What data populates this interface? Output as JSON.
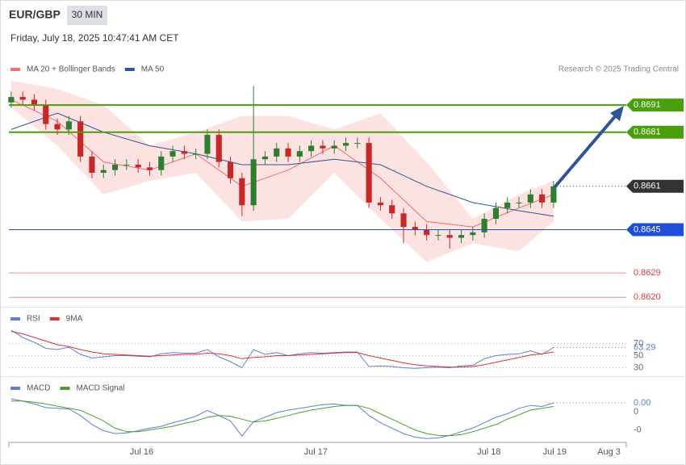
{
  "header": {
    "symbol": "EUR/GBP",
    "timeframe": "30 MIN",
    "datetime": "Friday, July 18, 2025 10:47:41 AM CET",
    "credit": "Research © 2025 Trading Central"
  },
  "chart_data": [
    {
      "type": "candlestick",
      "xlim": [
        -0.2,
        53.3
      ],
      "ylim": [
        0.8618,
        0.87
      ],
      "up_color": "#2e7d32",
      "down_color": "#c62828",
      "open": [
        0.8692,
        0.8694,
        0.8693,
        0.8691,
        0.8684,
        0.8682,
        0.8685,
        0.8672,
        0.8666,
        0.8667,
        0.8669,
        0.8669,
        0.8668,
        0.8667,
        0.8672,
        0.8674,
        0.8673,
        0.8673,
        0.868,
        0.867,
        0.8664,
        0.8654,
        0.8671,
        0.8672,
        0.8675,
        0.8672,
        0.8674,
        0.8676,
        0.8675,
        0.8676,
        0.8677,
        0.8677,
        0.8655,
        0.8654,
        0.8651,
        0.8646,
        0.8645,
        0.8643,
        0.8643,
        0.8642,
        0.8643,
        0.8644,
        0.8649,
        0.8653,
        0.8655,
        0.8655,
        0.8658,
        0.8655
      ],
      "high": [
        0.8696,
        0.8696,
        0.8695,
        0.8693,
        0.8686,
        0.8687,
        0.8687,
        0.8674,
        0.8669,
        0.8671,
        0.8671,
        0.8671,
        0.867,
        0.8674,
        0.8676,
        0.8676,
        0.8675,
        0.8682,
        0.8682,
        0.8672,
        0.8666,
        0.8698,
        0.8674,
        0.8677,
        0.8677,
        0.8676,
        0.8678,
        0.8678,
        0.8678,
        0.8679,
        0.8679,
        0.8679,
        0.8657,
        0.8656,
        0.8653,
        0.8648,
        0.8647,
        0.8645,
        0.8645,
        0.8645,
        0.8646,
        0.8651,
        0.8655,
        0.8657,
        0.8657,
        0.866,
        0.866,
        0.8663
      ],
      "low": [
        0.869,
        0.8691,
        0.8689,
        0.8682,
        0.868,
        0.868,
        0.867,
        0.8664,
        0.8664,
        0.8665,
        0.8667,
        0.8666,
        0.8665,
        0.8665,
        0.867,
        0.8671,
        0.8671,
        0.8671,
        0.8668,
        0.8662,
        0.865,
        0.8652,
        0.8669,
        0.867,
        0.867,
        0.867,
        0.8672,
        0.8673,
        0.8673,
        0.8674,
        0.8675,
        0.8653,
        0.8652,
        0.8649,
        0.864,
        0.8643,
        0.8641,
        0.8641,
        0.8638,
        0.864,
        0.8641,
        0.8642,
        0.8647,
        0.8651,
        0.8653,
        0.8653,
        0.8653,
        0.8653
      ],
      "close": [
        0.8694,
        0.8693,
        0.8691,
        0.8684,
        0.8682,
        0.8685,
        0.8672,
        0.8666,
        0.8667,
        0.8669,
        0.8669,
        0.8668,
        0.8667,
        0.8672,
        0.8674,
        0.8673,
        0.8673,
        0.868,
        0.867,
        0.8664,
        0.8654,
        0.8671,
        0.8672,
        0.8675,
        0.8672,
        0.8674,
        0.8676,
        0.8675,
        0.8676,
        0.8677,
        0.8677,
        0.8655,
        0.8654,
        0.8651,
        0.8646,
        0.8645,
        0.8643,
        0.8643,
        0.8642,
        0.8643,
        0.8644,
        0.8649,
        0.8653,
        0.8655,
        0.8655,
        0.8658,
        0.8655,
        0.8661
      ],
      "ma_x": [
        0,
        4,
        8,
        12,
        16,
        20,
        24,
        28,
        32,
        36,
        40,
        44,
        47
      ],
      "series": [
        {
          "name": "MA 20 + Bollinger Bands",
          "color": "#f07070",
          "values": [
            0.8693,
            0.8685,
            0.867,
            0.8667,
            0.8673,
            0.8661,
            0.8667,
            0.8676,
            0.8664,
            0.8648,
            0.8646,
            0.8653,
            0.8658
          ]
        },
        {
          "name": "MA 50",
          "color": "#2f5597",
          "values": [
            0.8682,
            0.8688,
            0.8681,
            0.8676,
            0.8673,
            0.8669,
            0.8669,
            0.8671,
            0.8669,
            0.8661,
            0.8655,
            0.8652,
            0.865
          ]
        }
      ],
      "band": {
        "color": "#fde2e2",
        "upper": [
          0.87,
          0.8697,
          0.8691,
          0.8676,
          0.8681,
          0.8687,
          0.8687,
          0.8682,
          0.8688,
          0.867,
          0.8649,
          0.8658,
          0.8663
        ],
        "lower": [
          0.869,
          0.8676,
          0.8658,
          0.8663,
          0.8666,
          0.8648,
          0.8649,
          0.8666,
          0.8649,
          0.8633,
          0.864,
          0.8637,
          0.8648
        ]
      },
      "levels": [
        {
          "value": 0.8691,
          "color": "#4a9e0c",
          "kind": "resistance"
        },
        {
          "value": 0.8681,
          "color": "#4a9e0c",
          "kind": "resistance"
        },
        {
          "value": 0.8661,
          "color": "#333333",
          "kind": "price"
        },
        {
          "value": 0.8645,
          "color": "#1f4fd8",
          "kind": "support"
        },
        {
          "value": 0.8629,
          "color": "#e03c3c",
          "kind": "minor"
        },
        {
          "value": 0.862,
          "label": "0.8620",
          "color": "#e03c3c",
          "kind": "minor"
        }
      ]
    },
    {
      "type": "line",
      "ylim": [
        16,
        104
      ],
      "yticks": [
        30,
        50,
        70
      ],
      "grid": true,
      "series": [
        {
          "name": "RSI",
          "color": "#5b7fd6",
          "values": [
            92,
            80,
            72,
            62,
            60,
            64,
            52,
            46,
            48,
            50,
            50,
            49,
            48,
            53,
            55,
            54,
            54,
            60,
            48,
            40,
            30,
            60,
            52,
            55,
            50,
            53,
            55,
            54,
            55,
            56,
            56,
            32,
            33,
            32,
            30,
            29,
            30,
            31,
            30,
            33,
            34,
            45,
            50,
            52,
            53,
            58,
            52,
            63.29
          ]
        },
        {
          "name": "9MA",
          "color": "#e03030",
          "values": [
            90,
            86,
            80,
            74,
            68,
            65,
            60,
            56,
            53,
            52,
            51,
            50,
            49,
            50,
            51,
            52,
            52,
            54,
            53,
            50,
            45,
            47,
            48,
            50,
            50,
            51,
            52,
            53,
            54,
            55,
            55,
            50,
            46,
            42,
            38,
            35,
            33,
            32,
            31,
            31,
            32,
            35,
            39,
            43,
            47,
            51,
            53,
            56
          ]
        }
      ]
    },
    {
      "type": "line",
      "ylim": [
        -0.0008,
        0.0009
      ],
      "yticks": [
        0,
        {
          "value": -0.0005,
          "label": "-0"
        }
      ],
      "grid": false,
      "xticks": [
        {
          "value": 11.3,
          "label": "Jul 16"
        },
        {
          "value": 26.4,
          "label": "Jul 17"
        },
        {
          "value": 41.4,
          "label": "Jul 18"
        },
        {
          "value": 47.1,
          "label": "Jul 19"
        },
        {
          "value": 51.8,
          "label": "Aug 3"
        }
      ],
      "series": [
        {
          "name": "MACD",
          "color": "#5b7fd6",
          "values": [
            0.00036,
            0.0003,
            0.00022,
            0.00012,
            0.0001,
            8e-05,
            -0.0001,
            -0.00035,
            -0.00052,
            -0.0006,
            -0.00058,
            -0.00052,
            -0.00045,
            -0.0004,
            -0.0003,
            -0.00022,
            -0.00012,
            4e-05,
            -0.0001,
            -0.00025,
            -0.00067,
            -0.00027,
            -0.00015,
            -2e-05,
            5e-05,
            0.0001,
            0.00015,
            0.0002,
            0.00022,
            0.00018,
            0.00018,
            -0.0001,
            -0.0003,
            -0.00045,
            -0.0006,
            -0.0007,
            -0.00074,
            -0.00072,
            -0.00065,
            -0.00055,
            -0.00045,
            -0.0003,
            -0.00015,
            -5e-05,
            0.0001,
            0.00018,
            0.00015,
            0.00025
          ],
          "value_labels": [
            null,
            null,
            null,
            null,
            null,
            null,
            null,
            null,
            null,
            null,
            null,
            null,
            null,
            null,
            null,
            null,
            null,
            null,
            null,
            null,
            null,
            null,
            null,
            null,
            null,
            null,
            null,
            null,
            null,
            null,
            null,
            null,
            null,
            null,
            null,
            null,
            null,
            null,
            null,
            null,
            null,
            null,
            null,
            null,
            null,
            null,
            null,
            "0.00"
          ]
        },
        {
          "name": "MACD Signal",
          "color": "#4aa02c",
          "values": [
            0.0003,
            0.0003,
            0.00027,
            0.00022,
            0.00016,
            0.0001,
            4e-05,
            -0.0001,
            -0.00025,
            -0.00045,
            -0.00055,
            -0.00055,
            -0.0005,
            -0.00045,
            -0.0004,
            -0.00032,
            -0.00025,
            -0.00015,
            -0.0001,
            -0.00012,
            -0.0002,
            -0.00028,
            -0.00025,
            -0.00018,
            -0.0001,
            -2e-05,
            5e-05,
            0.0001,
            0.00015,
            0.00018,
            0.00018,
            0.0001,
            -5e-05,
            -0.0002,
            -0.00035,
            -0.0005,
            -0.0006,
            -0.00065,
            -0.00066,
            -0.00063,
            -0.00055,
            -0.00045,
            -0.00035,
            -0.0002,
            -8e-05,
            5e-05,
            0.0001,
            0.00015
          ]
        }
      ]
    }
  ]
}
